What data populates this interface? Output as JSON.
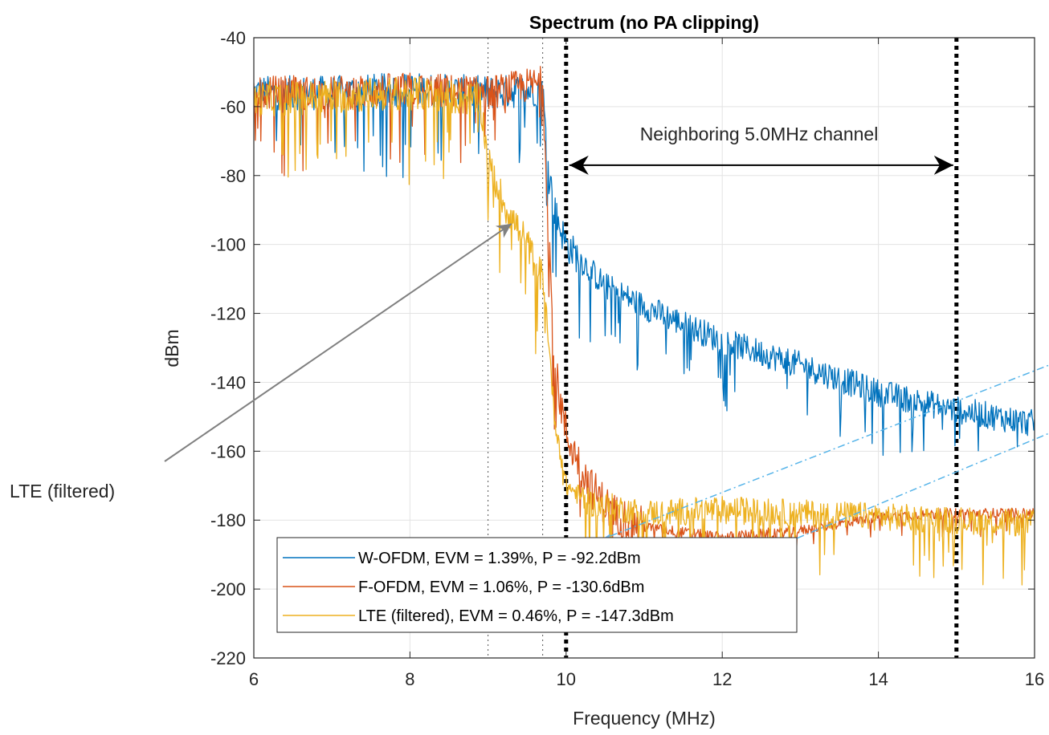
{
  "chart_data": {
    "type": "line",
    "title": "Spectrum (no PA clipping)",
    "xlabel": "Frequency (MHz)",
    "ylabel": "dBm",
    "xlim": [
      6,
      16
    ],
    "ylim": [
      -220,
      -40
    ],
    "xticks": [
      6,
      8,
      10,
      12,
      14,
      16
    ],
    "yticks": [
      -40,
      -60,
      -80,
      -100,
      -120,
      -140,
      -160,
      -180,
      -200,
      -220
    ],
    "grid": true,
    "legend_position": "bottom-left",
    "series": [
      {
        "name": "W-OFDM, EVM = 1.39%, P = -92.2dBm",
        "color": "#0072BD",
        "x": [
          6,
          7,
          8,
          9,
          9.7,
          9.75,
          9.85,
          10.0,
          10.5,
          11,
          12,
          13,
          14,
          15,
          16
        ],
        "y": [
          -56,
          -56,
          -55,
          -56,
          -55,
          -72,
          -90,
          -100,
          -112,
          -118,
          -128,
          -135,
          -143,
          -148,
          -152
        ]
      },
      {
        "name": "F-OFDM, EVM = 1.06%, P = -130.6dBm",
        "color": "#D95319",
        "x": [
          6,
          7,
          8,
          9,
          9.7,
          9.75,
          9.85,
          10.0,
          10.3,
          10.6,
          11,
          12,
          13,
          14,
          15,
          16
        ],
        "y": [
          -56,
          -56,
          -55,
          -56,
          -53,
          -80,
          -135,
          -155,
          -170,
          -178,
          -182,
          -185,
          -183,
          -179,
          -178,
          -178
        ]
      },
      {
        "name": "LTE (filtered), EVM = 0.46%, P = -147.3dBm",
        "color": "#EDB120",
        "x": [
          6,
          7,
          8,
          8.9,
          9.0,
          9.2,
          9.5,
          9.7,
          9.75,
          9.85,
          10.0,
          10.3,
          11,
          12,
          13,
          14,
          15,
          16
        ],
        "y": [
          -58,
          -57,
          -56,
          -58,
          -76,
          -88,
          -100,
          -110,
          -120,
          -150,
          -170,
          -175,
          -178,
          -177,
          -178,
          -179,
          -180,
          -181
        ]
      }
    ],
    "vlines": [
      {
        "x": 9.0,
        "style": "dotted-thin"
      },
      {
        "x": 9.7,
        "style": "dotted-thin"
      },
      {
        "x": 10.0,
        "style": "dotted-thick"
      },
      {
        "x": 15.0,
        "style": "dotted-thick"
      }
    ],
    "annotations": {
      "channel_label": "Neighboring 5.0MHz channel",
      "channel_arrow": {
        "x1": 10.0,
        "x2": 15.0,
        "y": -77
      },
      "lte_label": "LTE (filtered)",
      "lte_arrow_tip": {
        "x": 9.3,
        "y": -94
      }
    }
  }
}
